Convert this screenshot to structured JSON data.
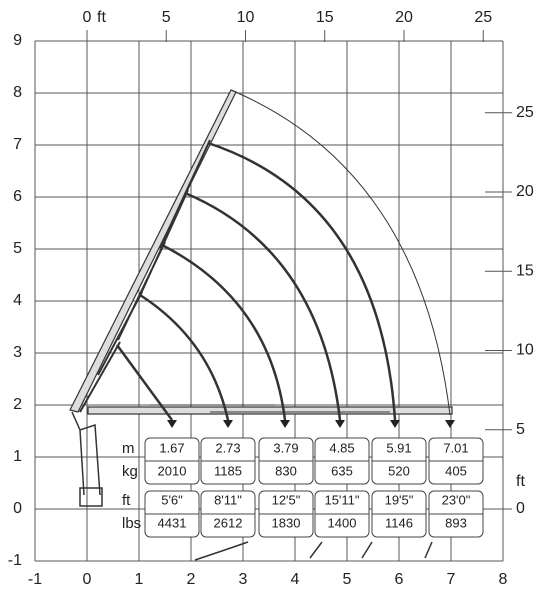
{
  "axes": {
    "x_m": [
      -1,
      0,
      1,
      2,
      3,
      4,
      5,
      6,
      7,
      8
    ],
    "y_m": [
      -1,
      0,
      1,
      2,
      3,
      4,
      5,
      6,
      7,
      8,
      9
    ],
    "top_ft": [
      0,
      5,
      10,
      15,
      20,
      25
    ],
    "right_ft": [
      0,
      5,
      10,
      15,
      20,
      25
    ],
    "top_unit": "ft",
    "right_unit": "ft"
  },
  "table": {
    "row_labels": [
      "m",
      "kg",
      "ft",
      "lbs"
    ],
    "columns": [
      [
        "1.67",
        "2010",
        "5'6\"",
        "4431"
      ],
      [
        "2.73",
        "1185",
        "8'11\"",
        "2612"
      ],
      [
        "3.79",
        "830",
        "12'5\"",
        "1830"
      ],
      [
        "4.85",
        "635",
        "15'11\"",
        "1400"
      ],
      [
        "5.91",
        "520",
        "19'5\"",
        "1146"
      ],
      [
        "7.01",
        "405",
        "23'0\"",
        "893"
      ]
    ]
  }
}
